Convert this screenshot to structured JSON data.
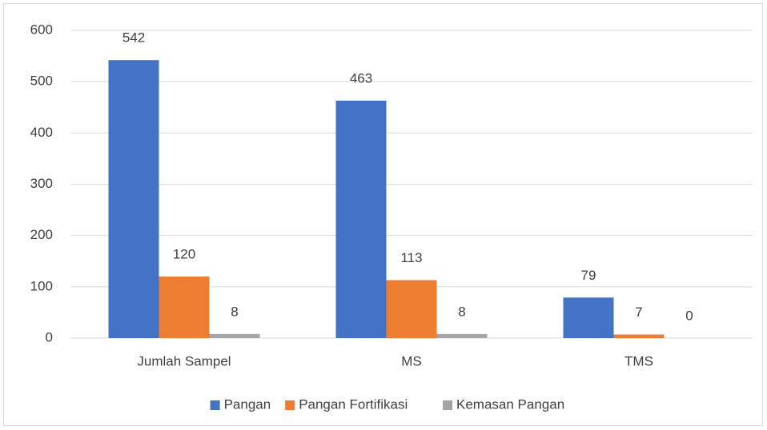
{
  "chart_data": {
    "type": "bar",
    "categories": [
      "Jumlah Sampel",
      "MS",
      "TMS"
    ],
    "series": [
      {
        "name": "Pangan",
        "color": "#4472c4",
        "values": [
          542,
          463,
          79
        ]
      },
      {
        "name": "Pangan Fortifikasi",
        "color": "#ed7d31",
        "values": [
          120,
          113,
          7
        ]
      },
      {
        "name": "Kemasan Pangan",
        "color": "#a5a5a5",
        "values": [
          8,
          8,
          0
        ]
      }
    ],
    "ylim": [
      0,
      600
    ],
    "yticks": [
      0,
      100,
      200,
      300,
      400,
      500,
      600
    ],
    "grid": true,
    "legend": "bottom"
  }
}
